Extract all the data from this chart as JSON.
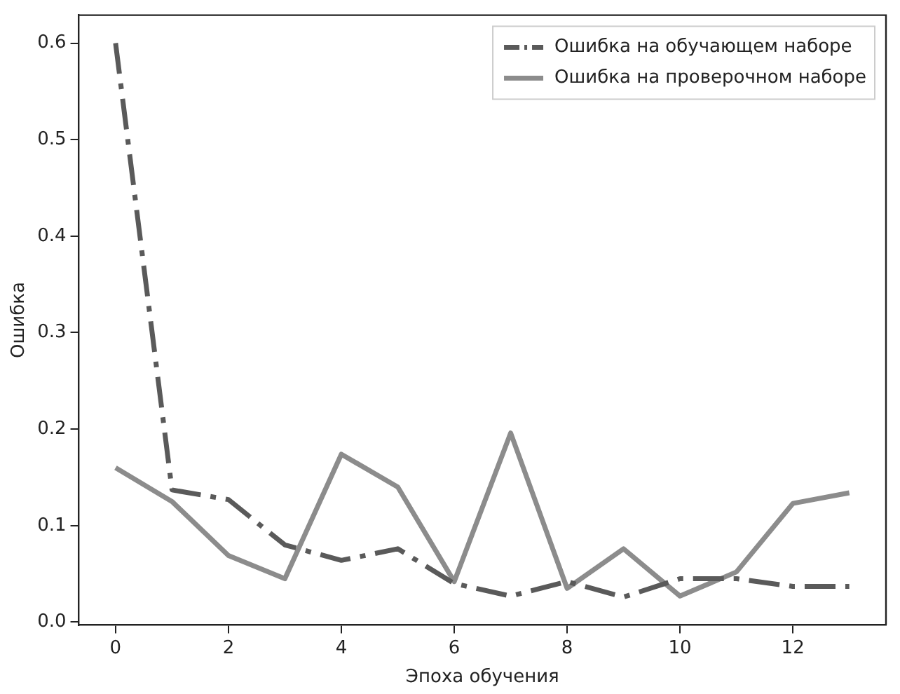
{
  "chart_data": {
    "type": "line",
    "xlabel": "Эпоха обучения",
    "ylabel": "Ошибка",
    "x": [
      0,
      1,
      2,
      3,
      4,
      5,
      6,
      7,
      8,
      9,
      10,
      11,
      12,
      13
    ],
    "series": [
      {
        "name": "Ошибка на обучающем наборе",
        "color": "#5a5a5a",
        "line_style": "dashdot",
        "values": [
          0.6,
          0.137,
          0.127,
          0.08,
          0.064,
          0.076,
          0.04,
          0.027,
          0.042,
          0.026,
          0.045,
          0.045,
          0.037,
          0.037
        ]
      },
      {
        "name": "Ошибка на проверочном наборе",
        "color": "#8c8c8c",
        "line_style": "solid",
        "values": [
          0.16,
          0.125,
          0.069,
          0.045,
          0.174,
          0.14,
          0.042,
          0.196,
          0.035,
          0.076,
          0.027,
          0.052,
          0.123,
          0.134
        ]
      }
    ],
    "xlim": [
      -0.65,
      13.65
    ],
    "xticks": [
      0,
      2,
      4,
      6,
      8,
      10,
      12
    ],
    "ylim": [
      -0.003,
      0.629
    ],
    "yticks": [
      {
        "value": 0,
        "label": "0.0"
      },
      {
        "value": 0.1,
        "label": "0.1"
      },
      {
        "value": 0.2,
        "label": "0.2"
      },
      {
        "value": 0.3,
        "label": "0.3"
      },
      {
        "value": 0.4,
        "label": "0.4"
      },
      {
        "value": 0.5,
        "label": "0.5"
      },
      {
        "value": 0.6,
        "label": "0.6"
      }
    ],
    "grid": false,
    "legend": "top right",
    "marker": "none"
  }
}
